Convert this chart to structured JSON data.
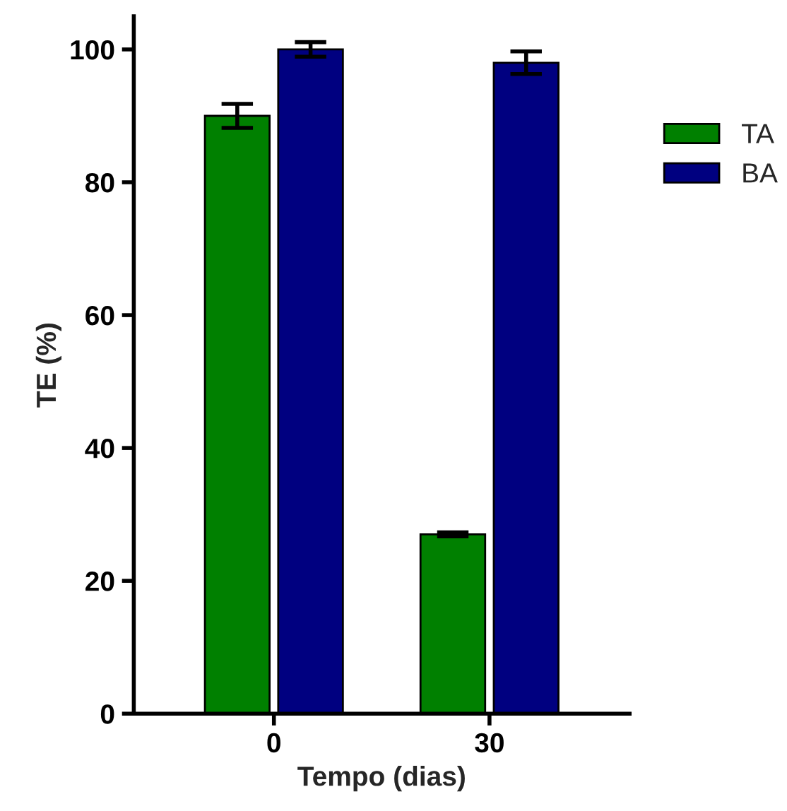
{
  "chart_data": {
    "type": "bar",
    "xlabel": "Tempo (dias)",
    "ylabel": "TE (%)",
    "categories": [
      "0",
      "30"
    ],
    "series": [
      {
        "name": "TA",
        "color": "#008000",
        "values": [
          90,
          27
        ],
        "errors": [
          1.8,
          0.3
        ]
      },
      {
        "name": "BA",
        "color": "#000080",
        "values": [
          100,
          98
        ],
        "errors": [
          1.1,
          1.7
        ]
      }
    ],
    "ylim": [
      0,
      105
    ],
    "yticks": [
      0,
      20,
      40,
      60,
      80,
      100
    ],
    "grid": false,
    "legend": "right"
  }
}
